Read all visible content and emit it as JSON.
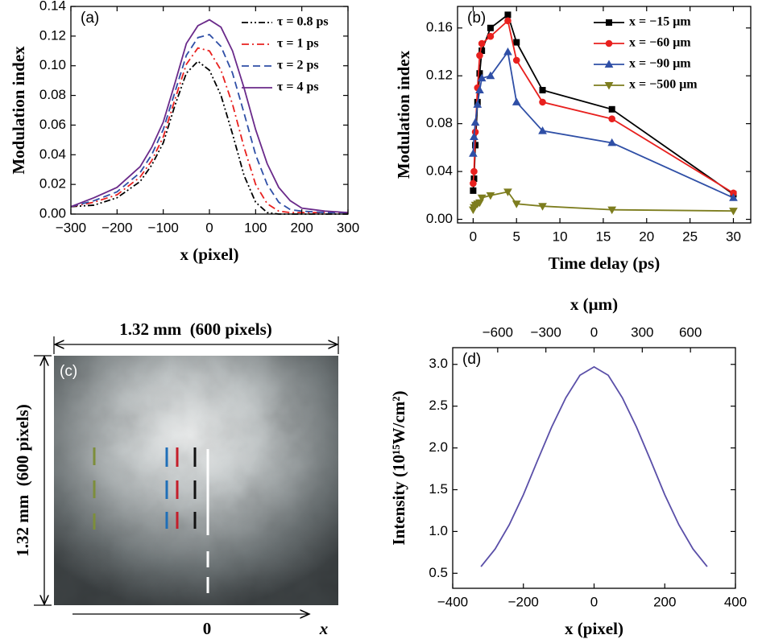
{
  "chart_data": [
    {
      "type": "line",
      "title": "(a)",
      "xlabel": "x (pixel)",
      "ylabel": "Modulation index",
      "xlim": [
        -300,
        300
      ],
      "ylim": [
        0,
        0.14
      ],
      "xticks": [
        {
          "value": -300,
          "label": "−300"
        },
        {
          "value": -200,
          "label": "−200"
        },
        {
          "value": -100,
          "label": "−100"
        },
        0,
        100,
        200,
        300
      ],
      "yticks": [
        {
          "value": 0,
          "label": "0.00"
        },
        0.02,
        0.04,
        0.06,
        0.08,
        {
          "value": 0.1,
          "label": "0.10"
        },
        0.12,
        0.14
      ],
      "legend": "upper right",
      "x": [
        -300,
        -250,
        -200,
        -150,
        -125,
        -100,
        -75,
        -50,
        -25,
        0,
        25,
        50,
        75,
        100,
        125,
        150,
        175,
        200,
        250,
        300
      ],
      "series": [
        {
          "name": "τ = 0.8 ps",
          "color": "#000000",
          "dash": "dash-dot-dot",
          "values": [
            0.005,
            0.006,
            0.011,
            0.022,
            0.033,
            0.048,
            0.073,
            0.095,
            0.103,
            0.097,
            0.08,
            0.054,
            0.026,
            0.008,
            0.001,
            0,
            0,
            0,
            0,
            0
          ]
        },
        {
          "name": "τ = 1 ps",
          "color": "#e8201e",
          "dash": "dash-dot",
          "values": [
            0.005,
            0.008,
            0.013,
            0.025,
            0.036,
            0.052,
            0.077,
            0.101,
            0.112,
            0.11,
            0.097,
            0.074,
            0.045,
            0.02,
            0.007,
            0.002,
            0.001,
            0.001,
            0.001,
            0.001
          ]
        },
        {
          "name": "τ = 2 ps",
          "color": "#2f4fa6",
          "dash": "dash",
          "values": [
            0.005,
            0.009,
            0.015,
            0.028,
            0.04,
            0.057,
            0.082,
            0.107,
            0.119,
            0.121,
            0.113,
            0.095,
            0.068,
            0.04,
            0.02,
            0.008,
            0.003,
            0.002,
            0.001,
            0.001
          ]
        },
        {
          "name": "τ = 4 ps",
          "color": "#6a2a8a",
          "dash": "solid",
          "values": [
            0.005,
            0.011,
            0.018,
            0.032,
            0.045,
            0.062,
            0.088,
            0.115,
            0.127,
            0.131,
            0.126,
            0.11,
            0.085,
            0.057,
            0.034,
            0.018,
            0.009,
            0.004,
            0.002,
            0.001
          ]
        }
      ]
    },
    {
      "type": "line",
      "title": "(b)",
      "xlabel": "Time delay (ps)",
      "ylabel": "Modulation index",
      "xlim": [
        -1.8,
        32
      ],
      "ylim": [
        -0.003,
        0.178
      ],
      "xticks": [
        0,
        5,
        10,
        15,
        20,
        25,
        30
      ],
      "yticks": [
        {
          "value": 0,
          "label": "0.00"
        },
        0.04,
        0.08,
        0.12,
        0.16
      ],
      "legend": "upper right",
      "x": [
        0,
        0.1,
        0.25,
        0.5,
        0.75,
        1,
        2,
        4,
        5,
        8,
        16,
        30
      ],
      "series": [
        {
          "name": "x = −15 μm",
          "color": "#000000",
          "marker": "square",
          "values": [
            0.024,
            0.034,
            0.062,
            0.098,
            0.122,
            0.141,
            0.16,
            0.171,
            0.148,
            0.108,
            0.092,
            0.021
          ]
        },
        {
          "name": "x = −60 μm",
          "color": "#e8201e",
          "marker": "circle",
          "values": [
            0.03,
            0.04,
            0.073,
            0.11,
            0.137,
            0.147,
            0.153,
            0.166,
            0.133,
            0.098,
            0.084,
            0.022
          ]
        },
        {
          "name": "x = −90 μm",
          "color": "#2f4fa6",
          "marker": "triangle",
          "values": [
            0.055,
            0.069,
            0.081,
            0.096,
            0.108,
            0.118,
            0.12,
            0.14,
            0.098,
            0.074,
            0.064,
            0.018
          ]
        },
        {
          "name": "x = −500 μm",
          "color": "#7d7d1e",
          "marker": "triangle-down",
          "values": [
            0.008,
            0.01,
            0.012,
            0.013,
            0.014,
            0.018,
            0.02,
            0.023,
            0.013,
            0.011,
            0.008,
            0.007
          ]
        }
      ]
    },
    {
      "type": "line",
      "title": "(d)",
      "xlabel": "x (pixel)",
      "ylabel": "Intensity (10¹⁵W/cm²)",
      "x2label": "x (μm)",
      "xlim": [
        -400,
        400
      ],
      "ylim": [
        0.32,
        3.2
      ],
      "x2lim": [
        -880,
        880
      ],
      "xticks": [
        {
          "value": -400,
          "label": "−400"
        },
        {
          "value": -200,
          "label": "−200"
        },
        0,
        200,
        400
      ],
      "x2ticks": [
        {
          "value": -600,
          "label": "−600"
        },
        {
          "value": -300,
          "label": "−300"
        },
        0,
        300,
        600
      ],
      "yticks": [
        0.5,
        {
          "value": 1,
          "label": "1.0"
        },
        1.5,
        {
          "value": 2,
          "label": "2.0"
        },
        2.5,
        {
          "value": 3,
          "label": "3.0"
        }
      ],
      "x": [
        -320,
        -280,
        -240,
        -200,
        -160,
        -120,
        -80,
        -40,
        0,
        40,
        80,
        120,
        160,
        200,
        240,
        280,
        320
      ],
      "series": [
        {
          "color": "#5a4fa8",
          "dash": "solid",
          "values": [
            0.58,
            0.79,
            1.08,
            1.44,
            1.85,
            2.25,
            2.6,
            2.87,
            2.97,
            2.87,
            2.6,
            2.25,
            1.85,
            1.44,
            1.08,
            0.79,
            0.58
          ]
        }
      ]
    }
  ],
  "image_panel": {
    "label": "(c)",
    "width_label": "1.32 mm  (600 pixels)",
    "height_label": "1.32 mm  (600 pixels)",
    "origin_label": "0",
    "axis_label": "x"
  }
}
